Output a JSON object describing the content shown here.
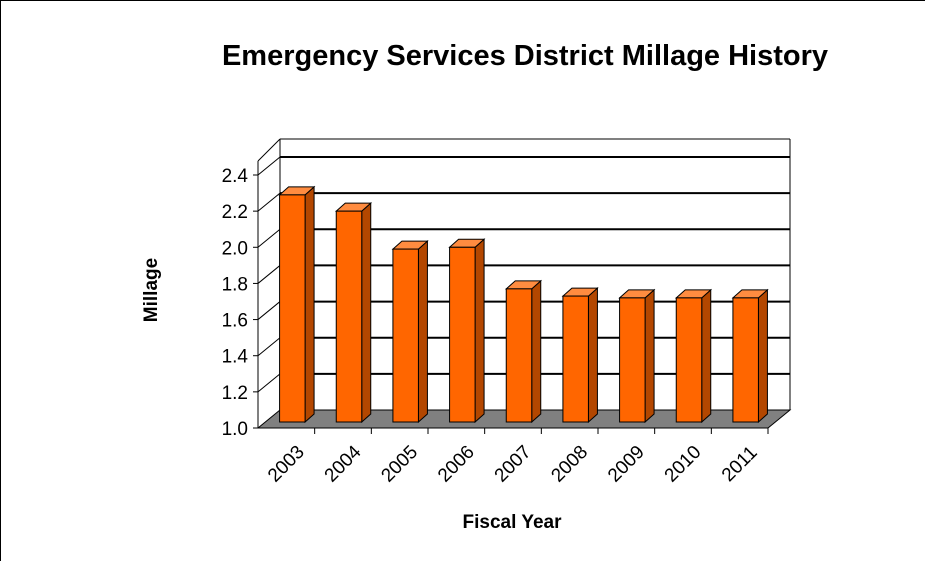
{
  "chart_data": {
    "type": "bar",
    "title": "Emergency Services District Millage History",
    "xlabel": "Fiscal Year",
    "ylabel": "Millage",
    "categories": [
      "2003",
      "2004",
      "2005",
      "2006",
      "2007",
      "2008",
      "2009",
      "2010",
      "2011"
    ],
    "values": [
      2.29,
      2.2,
      1.99,
      2.0,
      1.77,
      1.73,
      1.72,
      1.72,
      1.72
    ],
    "ylim": [
      1.0,
      2.4
    ],
    "y_ticks": [
      "1.0",
      "1.2",
      "1.4",
      "1.6",
      "1.8",
      "2.0",
      "2.2",
      "2.4"
    ],
    "grid": true,
    "style": "3d-column",
    "colors": {
      "bar_front": "#ff6600",
      "bar_side": "#b34700",
      "bar_top": "#ff8c40",
      "floor": "#808080",
      "gridline": "#000000"
    }
  }
}
